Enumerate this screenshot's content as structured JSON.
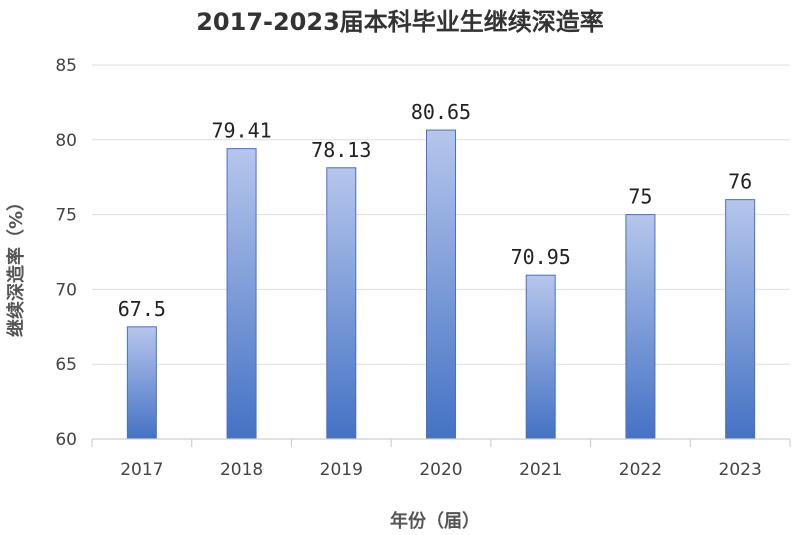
{
  "chart_data": {
    "type": "bar",
    "title": "2017-2023届本科毕业生继续深造率",
    "xlabel": "年份（届）",
    "ylabel": "继续深造率（%）",
    "categories": [
      "2017",
      "2018",
      "2019",
      "2020",
      "2021",
      "2022",
      "2023"
    ],
    "values": [
      67.5,
      79.41,
      78.13,
      80.65,
      70.95,
      75,
      76
    ],
    "data_labels": [
      "67.5",
      "79.41",
      "78.13",
      "80.65",
      "70.95",
      "75",
      "76"
    ],
    "ylim": [
      60,
      85
    ],
    "yticks": [
      "60",
      "65",
      "70",
      "75",
      "80",
      "85"
    ],
    "grid": true,
    "legend": "none",
    "colors": {
      "bar_top": "#b6c6ec",
      "bar_bottom": "#4472c4",
      "bar_border": "#4a6fc4"
    }
  }
}
